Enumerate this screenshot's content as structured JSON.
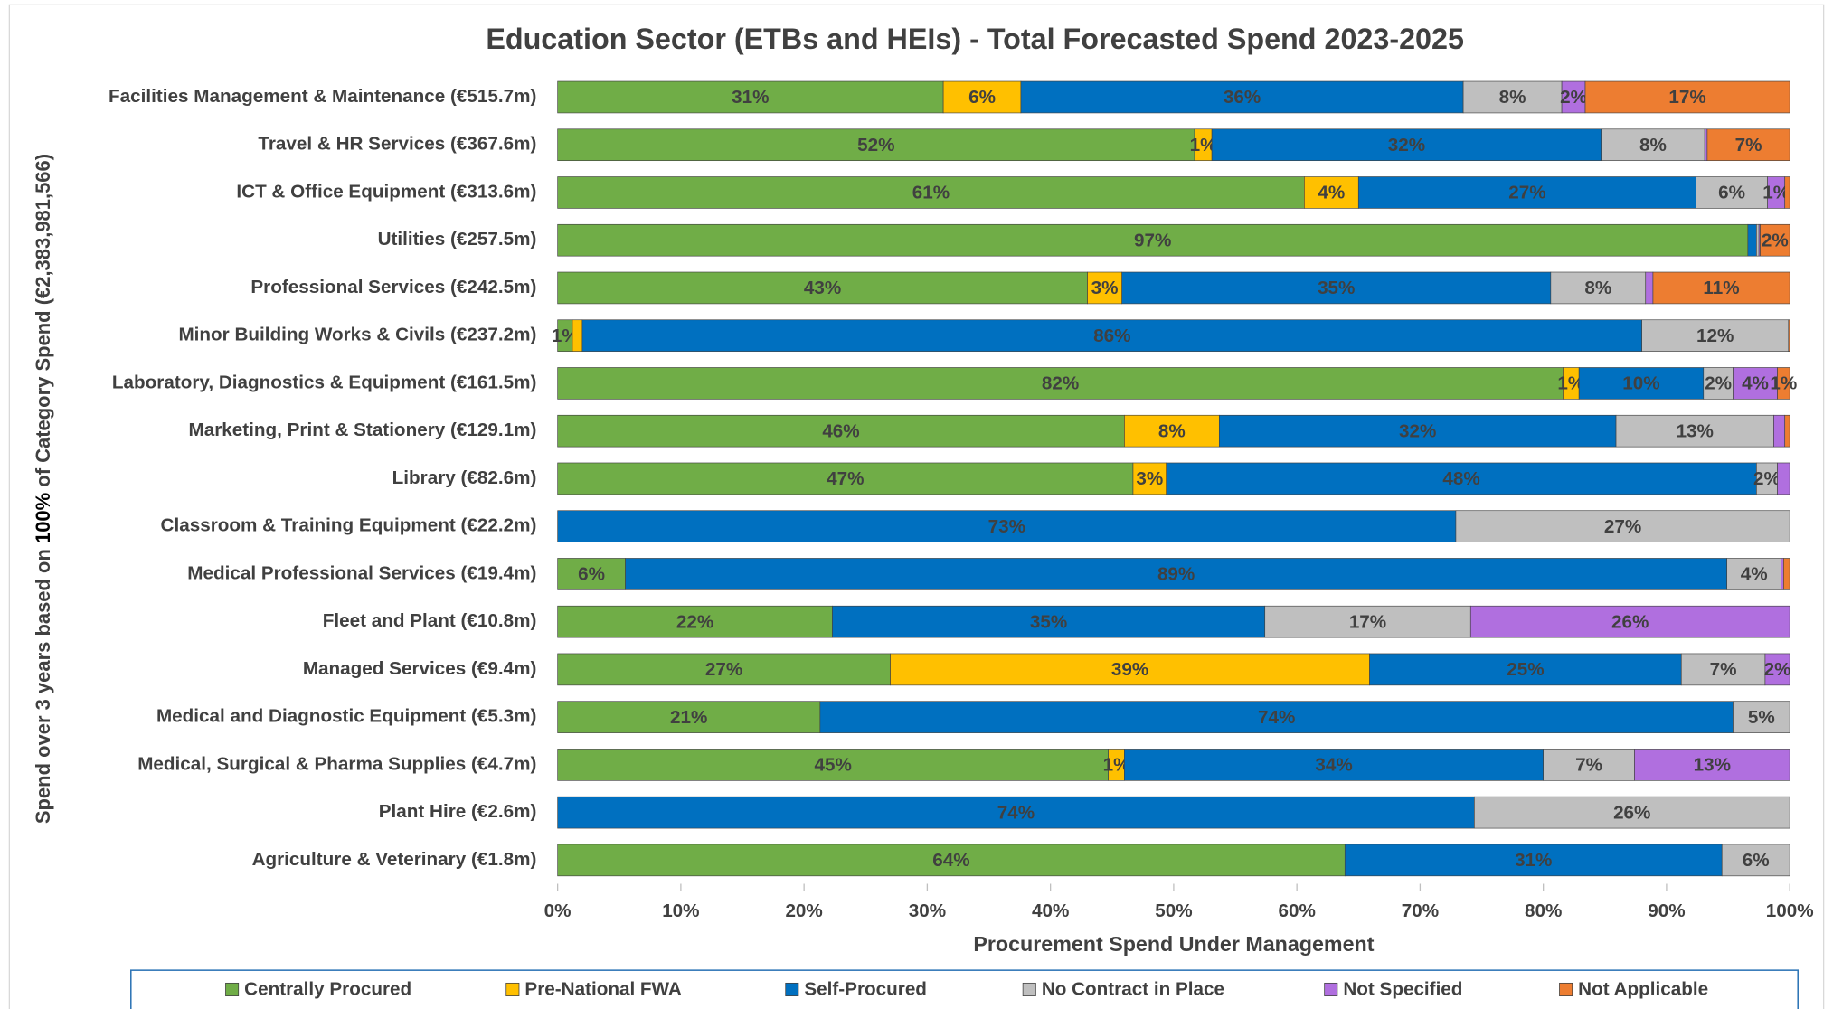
{
  "chart_data": {
    "type": "stacked_bar_horizontal",
    "title": "Education Sector (ETBs and HEIs) - Total Forecasted Spend 2023-2025",
    "x_label": "Procurement Spend Under Management",
    "y_label": [
      "Spend over 3 years based on ",
      "100%",
      " of Category Spend (€2,383,981,566)"
    ],
    "categories": [
      "Facilities Management & Maintenance (€515.7m)",
      "Travel & HR Services (€367.6m)",
      "ICT & Office Equipment (€313.6m)",
      "Utilities (€257.5m)",
      "Professional Services (€242.5m)",
      "Minor Building Works & Civils (€237.2m)",
      "Laboratory, Diagnostics & Equipment (€161.5m)",
      "Marketing, Print & Stationery (€129.1m)",
      "Library (€82.6m)",
      "Classroom & Training Equipment (€22.2m)",
      "Medical Professional Services (€19.4m)",
      "Fleet and Plant (€10.8m)",
      "Managed Services (€9.4m)",
      "Medical and Diagnostic Equipment (€5.3m)",
      "Medical, Surgical & Pharma Supplies (€4.7m)",
      "Plant Hire (€2.6m)",
      "Agriculture & Veterinary (€1.8m)"
    ],
    "series": [
      {
        "name": "Centrally Procured",
        "color": "#70ad47",
        "values": [
          31.3,
          51.7,
          60.6,
          96.6,
          43.0,
          1.2,
          81.6,
          46.0,
          46.7,
          0,
          5.5,
          22.3,
          27.0,
          21.3,
          44.7,
          0,
          63.9
        ],
        "value_labels": [
          "31%",
          "52%",
          "61%",
          "97%",
          "43%",
          "1%",
          "82%",
          "46%",
          "47%",
          null,
          "6%",
          "22%",
          "27%",
          "21%",
          "45%",
          null,
          "64%"
        ]
      },
      {
        "name": "Pre-National FWA",
        "color": "#ffc000",
        "values": [
          6.3,
          1.4,
          4.4,
          0,
          2.8,
          0.8,
          1.3,
          7.7,
          2.7,
          0,
          0,
          0,
          38.9,
          0,
          1.3,
          0,
          0
        ],
        "value_labels": [
          "6%",
          "1%",
          "4%",
          null,
          "3%",
          null,
          "1%",
          "8%",
          "3%",
          null,
          null,
          null,
          "39%",
          null,
          "1%",
          null,
          null
        ]
      },
      {
        "name": "Self-Procured",
        "color": "#0070c0",
        "values": [
          35.9,
          31.6,
          27.4,
          0.7,
          34.8,
          86.0,
          10.1,
          32.2,
          47.9,
          72.9,
          89.4,
          35.1,
          25.3,
          74.1,
          34.0,
          74.4,
          30.6
        ],
        "value_labels": [
          "36%",
          "32%",
          "27%",
          null,
          "35%",
          "86%",
          "10%",
          "32%",
          "48%",
          "73%",
          "89%",
          "35%",
          "25%",
          "74%",
          "34%",
          "74%",
          "31%"
        ]
      },
      {
        "name": "No Contract in Place",
        "color": "#bfbfbf",
        "values": [
          8.0,
          8.4,
          5.8,
          0.2,
          7.7,
          11.9,
          2.4,
          12.8,
          1.7,
          27.1,
          4.4,
          16.7,
          6.8,
          4.6,
          7.4,
          25.6,
          5.5
        ],
        "value_labels": [
          "8%",
          "8%",
          "6%",
          null,
          "8%",
          "12%",
          "2%",
          "13%",
          "2%",
          "27%",
          "4%",
          "17%",
          "7%",
          "5%",
          "7%",
          "26%",
          "6%"
        ]
      },
      {
        "name": "Not Specified",
        "color": "#b06fdf",
        "values": [
          1.9,
          0.2,
          1.4,
          0.1,
          0.6,
          0,
          3.6,
          0.9,
          1.0,
          0,
          0.2,
          25.9,
          2.0,
          0,
          12.6,
          0,
          0
        ],
        "value_labels": [
          "2%",
          null,
          "1%",
          null,
          null,
          null,
          "4%",
          null,
          null,
          null,
          null,
          "26%",
          "2%",
          null,
          "13%",
          null,
          null
        ]
      },
      {
        "name": "Not Applicable",
        "color": "#ed7d31",
        "values": [
          16.6,
          6.7,
          0.4,
          2.4,
          11.1,
          0.1,
          1.0,
          0.4,
          0,
          0,
          0.5,
          0,
          0,
          0,
          0,
          0,
          0
        ],
        "value_labels": [
          "17%",
          "7%",
          null,
          "2%",
          "11%",
          null,
          "1%",
          null,
          null,
          null,
          null,
          null,
          null,
          null,
          null,
          null,
          null
        ]
      }
    ],
    "xlim": [
      0,
      100
    ],
    "xticks": [
      {
        "value": 0,
        "label": "0%"
      },
      {
        "value": 10,
        "label": "10%"
      },
      {
        "value": 20,
        "label": "20%"
      },
      {
        "value": 30,
        "label": "30%"
      },
      {
        "value": 40,
        "label": "40%"
      },
      {
        "value": 50,
        "label": "50%"
      },
      {
        "value": 60,
        "label": "60%"
      },
      {
        "value": 70,
        "label": "70%"
      },
      {
        "value": 80,
        "label": "80%"
      },
      {
        "value": 90,
        "label": "90%"
      },
      {
        "value": 100,
        "label": "100%"
      }
    ],
    "legend": "bottom"
  }
}
